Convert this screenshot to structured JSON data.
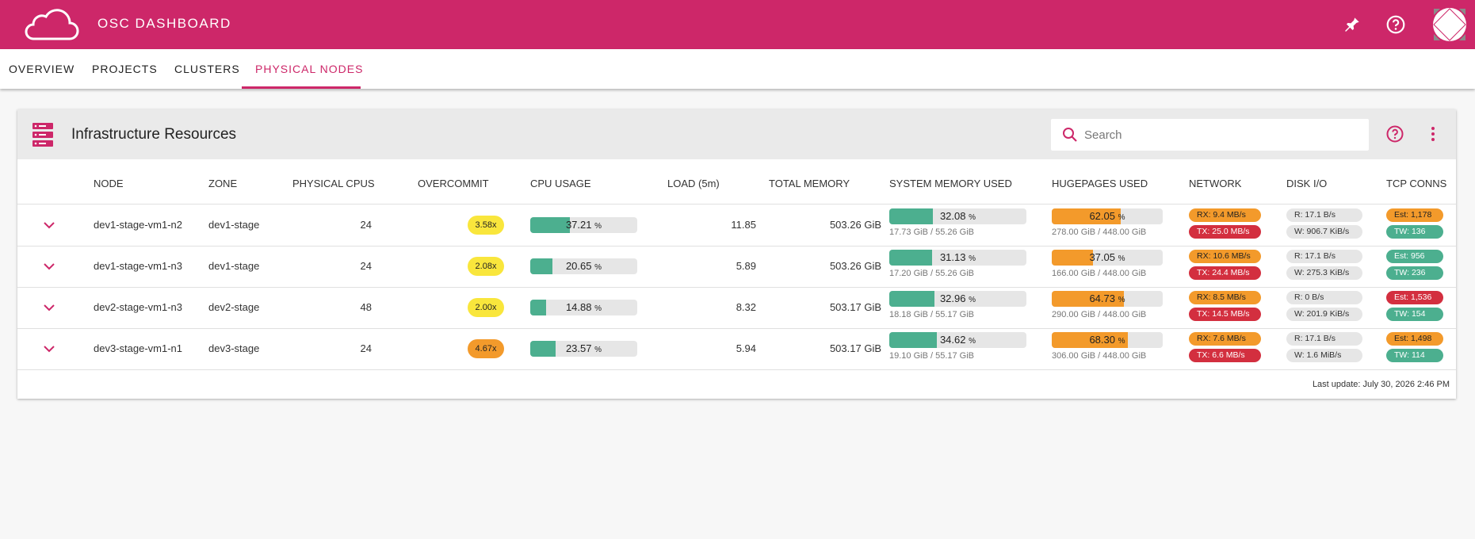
{
  "app": {
    "title": "OSC DASHBOARD"
  },
  "tabs": [
    {
      "label": "OVERVIEW",
      "active": false
    },
    {
      "label": "PROJECTS",
      "active": false
    },
    {
      "label": "CLUSTERS",
      "active": false
    },
    {
      "label": "PHYSICAL NODES",
      "active": true
    }
  ],
  "panel": {
    "title": "Infrastructure Resources",
    "search_placeholder": "Search",
    "columns": [
      "NODE",
      "ZONE",
      "PHYSICAL CPUS",
      "OVERCOMMIT",
      "CPU USAGE",
      "LOAD (5m)",
      "TOTAL MEMORY",
      "SYSTEM MEMORY USED",
      "HUGEPAGES USED",
      "NETWORK",
      "DISK I/O",
      "TCP CONNS"
    ],
    "footer": "Last update: July 30, 2026 2:46 PM"
  },
  "colors": {
    "brand": "#cd2769",
    "green": "#4caf8f",
    "orange": "#f39a2b",
    "yellow": "#f9e63c",
    "red": "#d32f3f",
    "grey": "#e6e6e6"
  },
  "rows": [
    {
      "node": "dev1-stage-vm1-n2",
      "zone": "dev1-stage",
      "cpus": "24",
      "overcommit": "3.58x",
      "overcommit_level": "yellow",
      "cpu_usage": "37.21",
      "cpu_pct": 37.21,
      "unit": "%",
      "load": "11.85",
      "total_memory": "503.26 GiB",
      "sys_mem": "32.08",
      "sys_mem_pct": 32.08,
      "sys_mem_sub": "17.73 GiB / 55.26 GiB",
      "huge": "62.05",
      "huge_pct": 62.05,
      "huge_sub": "278.00 GiB / 448.00 GiB",
      "rx": "RX: 9.4 MB/s",
      "tx": "TX: 25.0 MB/s",
      "disk_r": "R: 17.1 B/s",
      "disk_w": "W: 906.7 KiB/s",
      "est": "Est: 1,178",
      "est_level": "orange",
      "tw": "TW: 136"
    },
    {
      "node": "dev1-stage-vm1-n3",
      "zone": "dev1-stage",
      "cpus": "24",
      "overcommit": "2.08x",
      "overcommit_level": "yellow",
      "cpu_usage": "20.65",
      "cpu_pct": 20.65,
      "unit": "%",
      "load": "5.89",
      "total_memory": "503.26 GiB",
      "sys_mem": "31.13",
      "sys_mem_pct": 31.13,
      "sys_mem_sub": "17.20 GiB / 55.26 GiB",
      "huge": "37.05",
      "huge_pct": 37.05,
      "huge_sub": "166.00 GiB / 448.00 GiB",
      "rx": "RX: 10.6 MB/s",
      "tx": "TX: 24.4 MB/s",
      "disk_r": "R: 17.1 B/s",
      "disk_w": "W: 275.3 KiB/s",
      "est": "Est: 956",
      "est_level": "green",
      "tw": "TW: 236"
    },
    {
      "node": "dev2-stage-vm1-n3",
      "zone": "dev2-stage",
      "cpus": "48",
      "overcommit": "2.00x",
      "overcommit_level": "yellow",
      "cpu_usage": "14.88",
      "cpu_pct": 14.88,
      "unit": "%",
      "load": "8.32",
      "total_memory": "503.17 GiB",
      "sys_mem": "32.96",
      "sys_mem_pct": 32.96,
      "sys_mem_sub": "18.18 GiB / 55.17 GiB",
      "huge": "64.73",
      "huge_pct": 64.73,
      "huge_sub": "290.00 GiB / 448.00 GiB",
      "rx": "RX: 8.5 MB/s",
      "tx": "TX: 14.5 MB/s",
      "disk_r": "R: 0 B/s",
      "disk_w": "W: 201.9 KiB/s",
      "est": "Est: 1,536",
      "est_level": "red",
      "tw": "TW: 154"
    },
    {
      "node": "dev3-stage-vm1-n1",
      "zone": "dev3-stage",
      "cpus": "24",
      "overcommit": "4.67x",
      "overcommit_level": "orange",
      "cpu_usage": "23.57",
      "cpu_pct": 23.57,
      "unit": "%",
      "load": "5.94",
      "total_memory": "503.17 GiB",
      "sys_mem": "34.62",
      "sys_mem_pct": 34.62,
      "sys_mem_sub": "19.10 GiB / 55.17 GiB",
      "huge": "68.30",
      "huge_pct": 68.3,
      "huge_sub": "306.00 GiB / 448.00 GiB",
      "rx": "RX: 7.6 MB/s",
      "tx": "TX: 6.6 MB/s",
      "disk_r": "R: 17.1 B/s",
      "disk_w": "W: 1.6 MiB/s",
      "est": "Est: 1,498",
      "est_level": "orange",
      "tw": "TW: 114"
    }
  ]
}
